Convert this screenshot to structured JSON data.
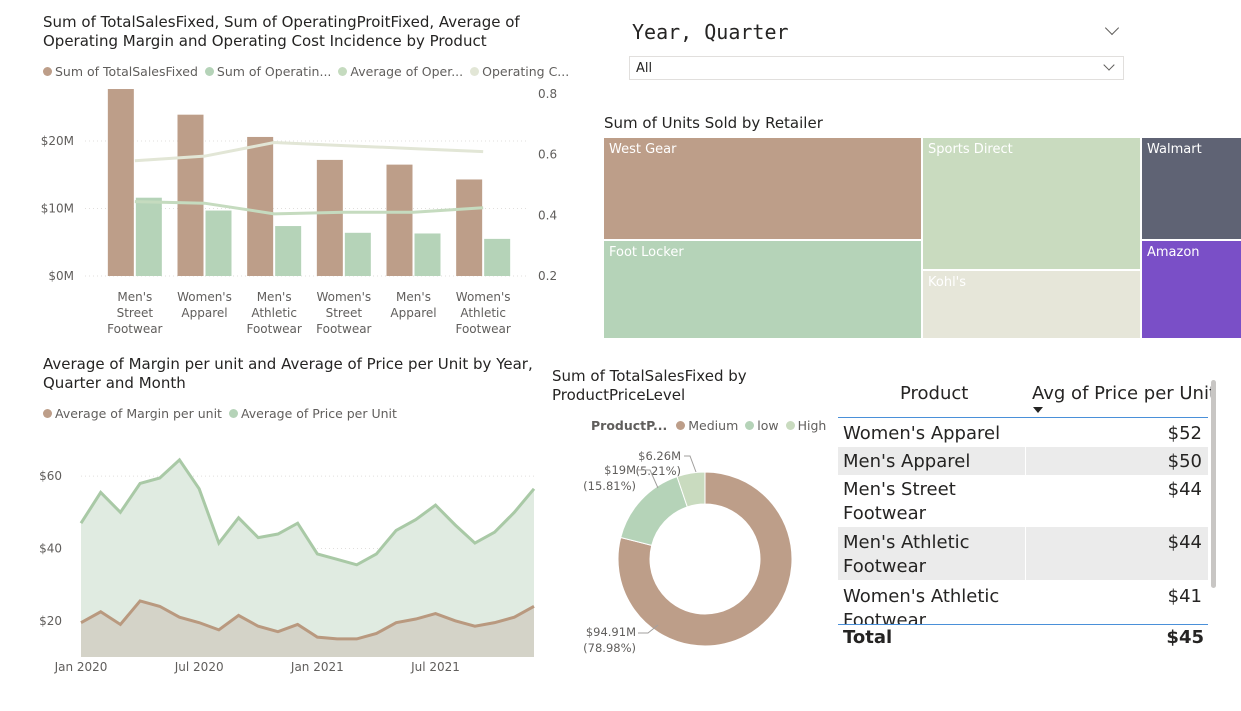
{
  "colors": {
    "brown": "#bd9e89",
    "green": "#b5d3b8",
    "green_line": "#a9c9a6",
    "cream": "#e2e6d6",
    "gray_slate": "#5f6374",
    "purple": "#7a4fc7",
    "pale_green": "#c9dbbf",
    "pale_cream": "#e6e6d9"
  },
  "visual1": {
    "title": "Sum of TotalSalesFixed, Sum of OperatingProitFixed, Average of Operating Margin and Operating Cost Incidence by Product",
    "legend": [
      "Sum of TotalSalesFixed",
      "Sum of Operatin...",
      "Average of Oper...",
      "Operating C..."
    ],
    "y_left_ticks": [
      "$20M",
      "$10M",
      "$0M"
    ],
    "y_right_ticks": [
      "0.8",
      "0.6",
      "0.4",
      "0.2"
    ],
    "category_labels": [
      [
        "Men's",
        "Street",
        "Footwear"
      ],
      [
        "Women's",
        "Apparel"
      ],
      [
        "Men's",
        "Athletic",
        "Footwear"
      ],
      [
        "Women's",
        "Street",
        "Footwear"
      ],
      [
        "Men's",
        "Apparel"
      ],
      [
        "Women's",
        "Athletic",
        "Footwear"
      ]
    ]
  },
  "slicer": {
    "title": "Year, Quarter",
    "value": "All"
  },
  "treemap": {
    "title": "Sum of Units Sold by Retailer",
    "tiles": [
      "West Gear",
      "Sports Direct",
      "Walmart",
      "Foot Locker",
      "Kohl's",
      "Amazon"
    ]
  },
  "visual2": {
    "title": "Average of Margin per unit and Average of Price per Unit by Year, Quarter and Month",
    "legend": [
      "Average of Margin per unit",
      "Average of Price per Unit"
    ],
    "y_ticks": [
      "$60",
      "$40",
      "$20"
    ],
    "x_ticks": [
      "Jan 2020",
      "Jul 2020",
      "Jan 2021",
      "Jul 2021"
    ]
  },
  "donut": {
    "title": "Sum of TotalSalesFixed by ProductPriceLevel",
    "legend_title": "ProductP...",
    "legend": [
      "Medium",
      "low",
      "High"
    ],
    "labels": [
      {
        "value": "$6.26M",
        "pct": "(5.21%)"
      },
      {
        "value": "$19M",
        "pct": "(15.81%)"
      },
      {
        "value": "$94.91M",
        "pct": "(78.98%)"
      }
    ]
  },
  "table": {
    "headers": [
      "Product",
      "Avg of Price per Unit"
    ],
    "rows": [
      {
        "product": "Women's Apparel",
        "price": "$52"
      },
      {
        "product": "Men's Apparel",
        "price": "$50"
      },
      {
        "product": "Men's Street Footwear",
        "price": "$44"
      },
      {
        "product": "Men's Athletic Footwear",
        "price": "$44"
      },
      {
        "product": "Women's Athletic Footwear",
        "price": "$41"
      }
    ],
    "total_label": "Total",
    "total_value": "$45"
  },
  "chart_data": [
    {
      "type": "bar",
      "title": "Sum of TotalSalesFixed, Sum of OperatingProitFixed, Average of Operating Margin and Operating Cost Incidence by Product",
      "categories": [
        "Men's Street Footwear",
        "Women's Apparel",
        "Men's Athletic Footwear",
        "Women's Street Footwear",
        "Men's Apparel",
        "Women's Athletic Footwear"
      ],
      "series": [
        {
          "name": "Sum of TotalSalesFixed",
          "type": "bar",
          "axis": "left",
          "values": [
            27.7,
            23.9,
            20.6,
            17.2,
            16.5,
            14.3
          ]
        },
        {
          "name": "Sum of OperatingProitFixed",
          "type": "bar",
          "axis": "left",
          "values": [
            11.6,
            9.7,
            7.4,
            6.4,
            6.3,
            5.5
          ]
        },
        {
          "name": "Average of Operating Margin",
          "type": "line",
          "axis": "right",
          "values": [
            0.445,
            0.44,
            0.405,
            0.41,
            0.41,
            0.425
          ]
        },
        {
          "name": "Operating Cost Incidence",
          "type": "line",
          "axis": "right",
          "values": [
            0.58,
            0.595,
            0.64,
            0.63,
            0.62,
            0.61
          ]
        }
      ],
      "ylim_left": [
        0,
        30
      ],
      "ylim_right": [
        0.2,
        0.8
      ],
      "legend_position": "top-left",
      "grid": true
    },
    {
      "type": "area",
      "title": "Average of Margin per unit and Average of Price per Unit by Year, Quarter and Month",
      "x": [
        "2020-01",
        "2020-02",
        "2020-03",
        "2020-04",
        "2020-05",
        "2020-06",
        "2020-07",
        "2020-08",
        "2020-09",
        "2020-10",
        "2020-11",
        "2020-12",
        "2021-01",
        "2021-02",
        "2021-03",
        "2021-04",
        "2021-05",
        "2021-06",
        "2021-07",
        "2021-08",
        "2021-09",
        "2021-10",
        "2021-11",
        "2021-12"
      ],
      "series": [
        {
          "name": "Average of Price per Unit",
          "values": [
            47,
            55.5,
            50,
            58,
            59.5,
            64.5,
            56.5,
            41.5,
            48.5,
            43,
            44,
            47,
            38.5,
            37,
            35.5,
            38.5,
            45,
            48,
            52,
            46.5,
            41.5,
            44.5,
            50,
            56.5
          ]
        },
        {
          "name": "Average of Margin per unit",
          "values": [
            19.5,
            22.5,
            19,
            25.5,
            24,
            21,
            19.5,
            17.5,
            21.5,
            18.5,
            17,
            19,
            15.5,
            15,
            15,
            16.5,
            19.5,
            20.5,
            22,
            20,
            18.5,
            19.5,
            21,
            24
          ]
        }
      ],
      "ylim": [
        10,
        70
      ],
      "legend_position": "top-left",
      "grid": true
    },
    {
      "type": "pie",
      "title": "Sum of TotalSalesFixed by ProductPriceLevel",
      "categories": [
        "Medium",
        "low",
        "High"
      ],
      "values": [
        94.91,
        19,
        6.26
      ],
      "percentages": [
        78.98,
        15.81,
        5.21
      ],
      "donut": true
    },
    {
      "type": "treemap",
      "title": "Sum of Units Sold by Retailer",
      "categories": [
        "West Gear",
        "Foot Locker",
        "Sports Direct",
        "Kohl's",
        "Walmart",
        "Amazon"
      ]
    }
  ]
}
